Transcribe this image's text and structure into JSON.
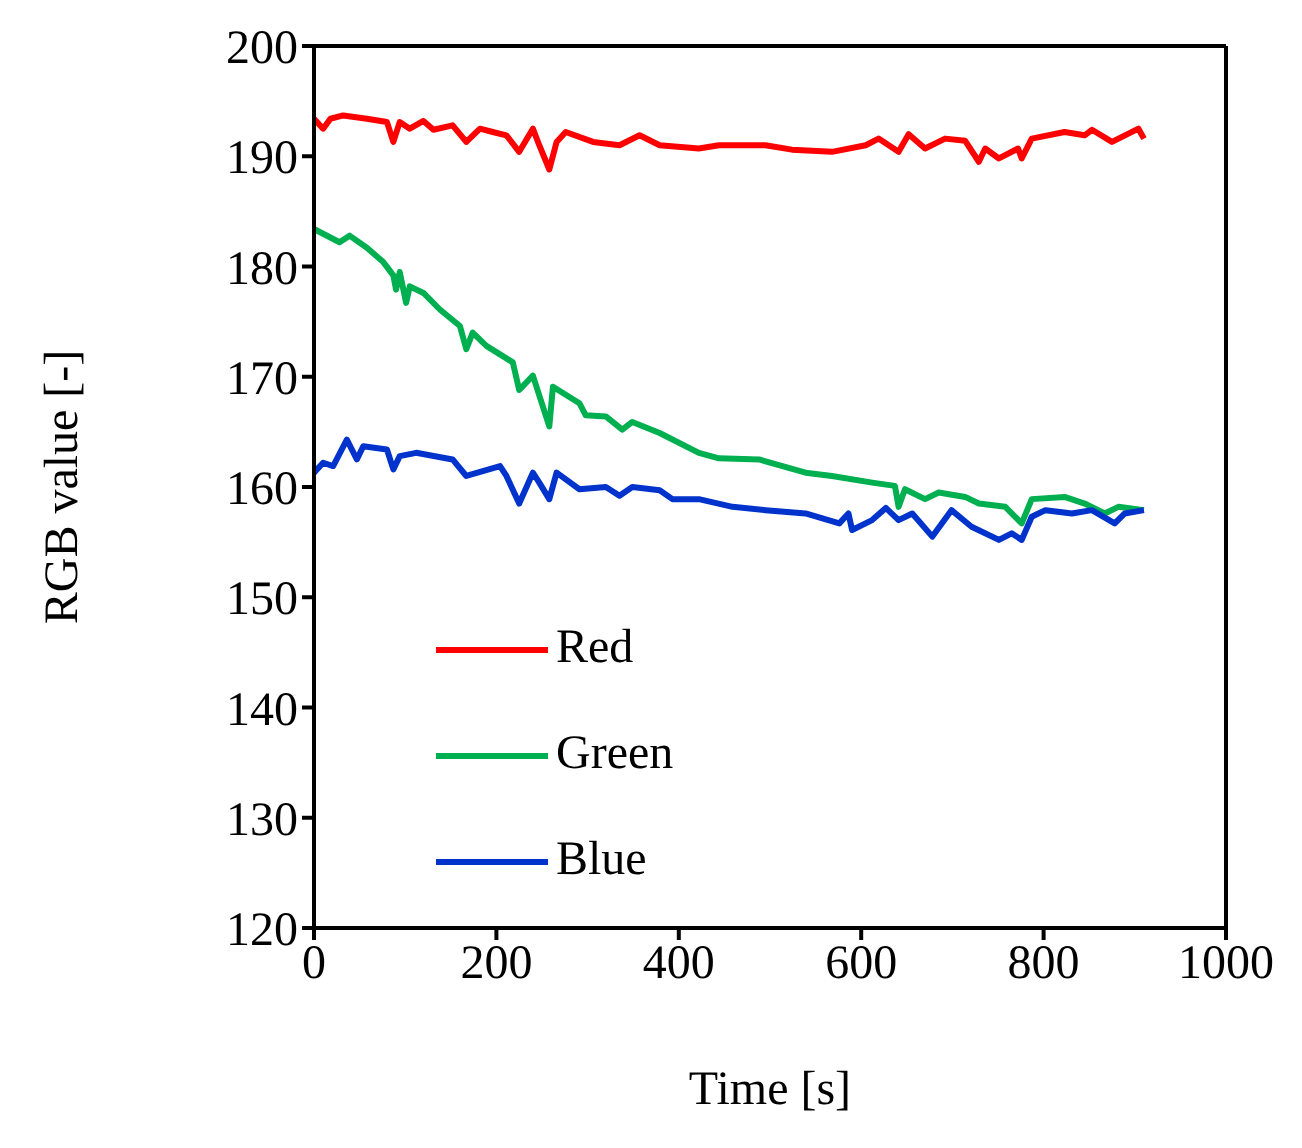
{
  "chart_data": {
    "type": "line",
    "xlabel": "Time [s]",
    "ylabel": "RGB value [-]",
    "xlim": [
      0,
      1000
    ],
    "xticks": [
      0,
      200,
      400,
      600,
      800,
      1000
    ],
    "ylim": [
      120,
      200
    ],
    "yticks": [
      120,
      130,
      140,
      150,
      160,
      170,
      180,
      190,
      200
    ],
    "legend": "left",
    "marker": "none",
    "line_style": "solid",
    "series": [
      {
        "name": "Red",
        "color": "#ff0000",
        "x": [
          0,
          10,
          18,
          32,
          58,
          80,
          87,
          94,
          105,
          120,
          131,
          152,
          167,
          182,
          196,
          211,
          225,
          240,
          247,
          258,
          266,
          276,
          306,
          335,
          357,
          379,
          422,
          444,
          466,
          495,
          524,
          568,
          605,
          619,
          641,
          652,
          670,
          692,
          714,
          729,
          736,
          751,
          772,
          776,
          787,
          823,
          845,
          853,
          875,
          904,
          910
        ],
        "values": [
          193.4,
          192.5,
          193.4,
          193.7,
          193.4,
          193.1,
          191.3,
          193.1,
          192.5,
          193.2,
          192.4,
          192.8,
          191.3,
          192.5,
          192.2,
          191.9,
          190.4,
          192.5,
          191.0,
          188.8,
          191.3,
          192.2,
          191.3,
          191.0,
          191.9,
          191.0,
          190.7,
          191.0,
          191.0,
          191.0,
          190.6,
          190.4,
          191.0,
          191.6,
          190.4,
          192.0,
          190.7,
          191.6,
          191.4,
          189.5,
          190.7,
          189.8,
          190.7,
          189.8,
          191.6,
          192.2,
          191.9,
          192.4,
          191.3,
          192.5,
          191.6
        ]
      },
      {
        "name": "Green",
        "color": "#00b050",
        "x": [
          0,
          28,
          39,
          58,
          76,
          87,
          90,
          94,
          101,
          105,
          120,
          138,
          160,
          167,
          174,
          189,
          218,
          225,
          240,
          258,
          262,
          291,
          298,
          320,
          338,
          349,
          379,
          422,
          444,
          488,
          539,
          568,
          612,
          637,
          641,
          648,
          670,
          685,
          714,
          729,
          758,
          776,
          787,
          823,
          845,
          867,
          882,
          910
        ],
        "values": [
          183.4,
          182.2,
          182.8,
          181.7,
          180.4,
          179.2,
          177.9,
          179.5,
          176.7,
          178.2,
          177.6,
          176.1,
          174.6,
          172.5,
          174.0,
          172.8,
          171.3,
          168.8,
          170.1,
          165.5,
          169.1,
          167.6,
          166.5,
          166.4,
          165.2,
          165.9,
          164.9,
          163.1,
          162.6,
          162.5,
          161.3,
          161.0,
          160.4,
          160.1,
          158.2,
          159.8,
          158.9,
          159.5,
          159.1,
          158.5,
          158.2,
          156.7,
          158.9,
          159.1,
          158.5,
          157.6,
          158.2,
          157.9
        ]
      },
      {
        "name": "Blue",
        "color": "#0033cc",
        "x": [
          0,
          10,
          21,
          36,
          47,
          54,
          80,
          87,
          94,
          112,
          152,
          167,
          204,
          211,
          225,
          240,
          247,
          258,
          266,
          291,
          320,
          335,
          349,
          379,
          393,
          422,
          459,
          495,
          539,
          576,
          586,
          590,
          612,
          627,
          641,
          656,
          678,
          699,
          721,
          751,
          765,
          776,
          787,
          802,
          831,
          853,
          878,
          889,
          910
        ],
        "values": [
          161.3,
          162.2,
          161.9,
          164.3,
          162.5,
          163.7,
          163.4,
          161.6,
          162.8,
          163.1,
          162.5,
          161.0,
          161.9,
          161.0,
          158.5,
          161.3,
          160.4,
          158.9,
          161.3,
          159.8,
          160.0,
          159.2,
          160.0,
          159.7,
          158.9,
          158.9,
          158.2,
          157.9,
          157.6,
          156.7,
          157.6,
          156.1,
          157.0,
          158.1,
          157.0,
          157.6,
          155.5,
          157.9,
          156.4,
          155.2,
          155.8,
          155.2,
          157.3,
          157.9,
          157.6,
          157.9,
          156.7,
          157.6,
          157.9
        ]
      }
    ]
  }
}
